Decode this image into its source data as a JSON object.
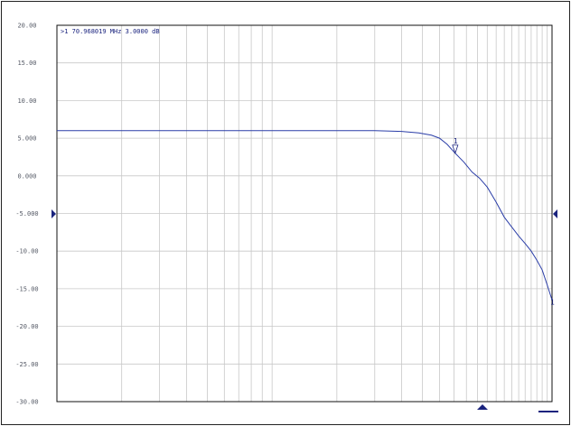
{
  "chart_data": {
    "type": "line",
    "title": "",
    "xlabel": "",
    "ylabel": "",
    "x_scale": "log",
    "xlim_mhz": [
      1,
      200
    ],
    "ylim": [
      -30,
      20
    ],
    "y_ticks": [
      "20.00",
      "15.00",
      "10.00",
      "5.000",
      "0.000",
      "-5.000",
      "-10.00",
      "-15.00",
      "-20.00",
      "-25.00",
      "-30.00"
    ],
    "reference_level": -5,
    "grid": true,
    "colors": {
      "trace": "#2b3ea8",
      "grid": "#c8c8c8",
      "axis": "#111111",
      "marker": "#1a237e"
    },
    "marker": {
      "readout": ">1  70.968019 MHz  3.0000 dB",
      "label": "1",
      "x_mhz": 70.968019,
      "y_db": 3.0
    },
    "trace_end_label": "1",
    "series": [
      {
        "x": [
          1,
          10,
          30,
          40,
          48,
          55,
          60,
          65,
          70.968019,
          78,
          85,
          92,
          100,
          110,
          120,
          130,
          140,
          150,
          160,
          170,
          180,
          190,
          200
        ],
        "values": [
          6.0,
          6.0,
          6.0,
          5.9,
          5.7,
          5.4,
          5.0,
          4.2,
          3.0,
          1.8,
          0.5,
          -0.3,
          -1.5,
          -3.5,
          -5.5,
          -6.8,
          -8.0,
          -9.0,
          -10.0,
          -11.2,
          -12.5,
          -14.5,
          -16.5
        ]
      }
    ]
  }
}
